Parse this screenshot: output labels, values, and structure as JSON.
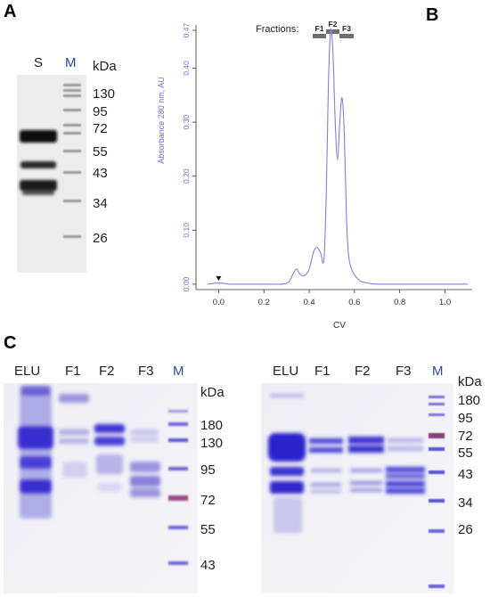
{
  "panels": {
    "A": {
      "letter": "A",
      "lanes": [
        {
          "label": "S",
          "color": "#222222"
        },
        {
          "label": "M",
          "color": "#2b4aa8"
        }
      ],
      "unit": "kDa",
      "markers": [
        "130",
        "95",
        "72",
        "55",
        "43",
        "34",
        "26"
      ]
    },
    "B": {
      "letter": "B",
      "fractions_label": "Fractions:",
      "fractions": [
        "F1",
        "F2",
        "F3"
      ],
      "chart_data": {
        "type": "line",
        "title": "",
        "xlabel": "CV",
        "ylabel": "Absorbance 280 nm, AU",
        "xlim": [
          -0.1,
          1.12
        ],
        "ylim": [
          -0.01,
          0.48
        ],
        "xticks": [
          "0.0",
          "0.2",
          "0.4",
          "0.6",
          "0.8",
          "1.0"
        ],
        "yticks": [
          "0.00",
          "0.10",
          "0.20",
          "0.30",
          "0.40",
          "0.47"
        ],
        "grid": false,
        "line_color": "#8080e0",
        "injection_marker_x": 0.0,
        "series": [
          {
            "x": [
              -0.05,
              0.0,
              0.05,
              0.1,
              0.15,
              0.2,
              0.25,
              0.28,
              0.31,
              0.33,
              0.345,
              0.36,
              0.38,
              0.4,
              0.42,
              0.435,
              0.45,
              0.465,
              0.475,
              0.485,
              0.495,
              0.505,
              0.515,
              0.525,
              0.535,
              0.545,
              0.555,
              0.565,
              0.575,
              0.59,
              0.61,
              0.63,
              0.66,
              0.7,
              0.8,
              0.9,
              1.0,
              1.1
            ],
            "y": [
              0.0,
              0.002,
              0.0,
              0.0,
              0.0,
              0.0,
              0.0,
              0.0,
              0.004,
              0.02,
              0.028,
              0.018,
              0.016,
              0.028,
              0.06,
              0.068,
              0.058,
              0.045,
              0.16,
              0.37,
              0.47,
              0.43,
              0.3,
              0.23,
              0.3,
              0.345,
              0.28,
              0.12,
              0.05,
              0.025,
              0.012,
              0.005,
              0.002,
              0.0,
              0.0,
              0.0,
              0.0,
              0.0
            ]
          }
        ]
      }
    },
    "C": {
      "letter": "C",
      "left": {
        "lanes": [
          "ELU",
          "F1",
          "F2",
          "F3"
        ],
        "m_label": "M",
        "unit": "kDa",
        "markers": [
          "180",
          "130",
          "95",
          "72",
          "55",
          "43"
        ]
      },
      "right": {
        "lanes": [
          "ELU",
          "F1",
          "F2",
          "F3"
        ],
        "m_label": "M",
        "unit": "kDa",
        "markers": [
          "180",
          "95",
          "72",
          "55",
          "43",
          "34",
          "26"
        ]
      }
    }
  }
}
